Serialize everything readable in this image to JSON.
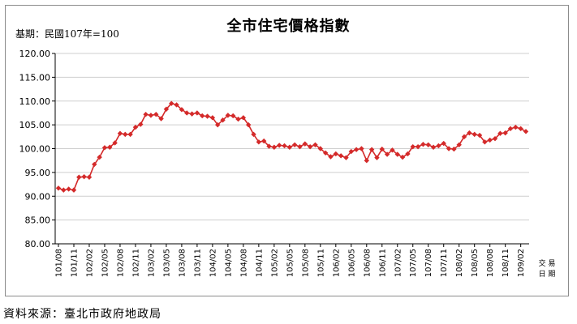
{
  "chart_title": "全市住宅價格指數",
  "base_note": "基期：民國107年=100",
  "source_note": "資料來源：臺北市政府地政局",
  "colors": {
    "line": "#d42a2a",
    "marker": "#d42a2a",
    "grid": "#cfcfcf"
  },
  "chart_data": {
    "type": "line",
    "title": "全市住宅價格指數",
    "xlabel": "交易日期",
    "ylabel": "",
    "ylim": [
      80,
      120
    ],
    "yticks": [
      "80.00",
      "85.00",
      "90.00",
      "95.00",
      "100.00",
      "105.00",
      "110.00",
      "115.00",
      "120.00"
    ],
    "grid": true,
    "legend": "none",
    "x_tick_labels": [
      "101/08",
      "101/11",
      "102/02",
      "102/05",
      "102/08",
      "102/11",
      "103/02",
      "103/05",
      "103/08",
      "103/11",
      "104/02",
      "104/05",
      "104/08",
      "104/11",
      "105/02",
      "105/05",
      "105/08",
      "105/11",
      "106/02",
      "106/05",
      "106/08",
      "106/11",
      "107/02",
      "107/05",
      "107/08",
      "107/11",
      "108/02",
      "108/05",
      "108/08",
      "108/11",
      "109/02"
    ],
    "x": [
      "101/08",
      "101/09",
      "101/10",
      "101/11",
      "101/12",
      "102/01",
      "102/02",
      "102/03",
      "102/04",
      "102/05",
      "102/06",
      "102/07",
      "102/08",
      "102/09",
      "102/10",
      "102/11",
      "102/12",
      "103/01",
      "103/02",
      "103/03",
      "103/04",
      "103/05",
      "103/06",
      "103/07",
      "103/08",
      "103/09",
      "103/10",
      "103/11",
      "103/12",
      "104/01",
      "104/02",
      "104/03",
      "104/04",
      "104/05",
      "104/06",
      "104/07",
      "104/08",
      "104/09",
      "104/10",
      "104/11",
      "104/12",
      "105/01",
      "105/02",
      "105/03",
      "105/04",
      "105/05",
      "105/06",
      "105/07",
      "105/08",
      "105/09",
      "105/10",
      "105/11",
      "105/12",
      "106/01",
      "106/02",
      "106/03",
      "106/04",
      "106/05",
      "106/06",
      "106/07",
      "106/08",
      "106/09",
      "106/10",
      "106/11",
      "106/12",
      "107/01",
      "107/02",
      "107/03",
      "107/04",
      "107/05",
      "107/06",
      "107/07",
      "107/08",
      "107/09",
      "107/10",
      "107/11",
      "107/12",
      "108/01",
      "108/02",
      "108/03",
      "108/04",
      "108/05",
      "108/06",
      "108/07",
      "108/08",
      "108/09",
      "108/10",
      "108/11",
      "108/12",
      "109/01",
      "109/02",
      "109/03"
    ],
    "series": [
      {
        "values": [
          91.7,
          91.3,
          91.5,
          91.3,
          94.0,
          94.1,
          94.0,
          96.7,
          98.2,
          100.2,
          100.3,
          101.2,
          103.2,
          103.0,
          103.0,
          104.5,
          105.1,
          107.2,
          107.0,
          107.2,
          106.3,
          108.3,
          109.5,
          109.2,
          108.2,
          107.5,
          107.3,
          107.5,
          106.9,
          106.8,
          106.5,
          105.0,
          106.0,
          107.0,
          106.9,
          106.2,
          106.5,
          105.0,
          103.0,
          101.4,
          101.6,
          100.5,
          100.3,
          100.7,
          100.6,
          100.3,
          100.8,
          100.4,
          101.0,
          100.4,
          100.8,
          100.0,
          99.1,
          98.3,
          98.9,
          98.5,
          98.1,
          99.4,
          99.8,
          100.0,
          97.5,
          99.8,
          98.1,
          99.9,
          98.8,
          99.7,
          98.8,
          98.2,
          98.9,
          100.4,
          100.4,
          100.9,
          100.8,
          100.3,
          100.6,
          101.1,
          100.0,
          99.9,
          100.8,
          102.5,
          103.3,
          103.0,
          102.8,
          101.4,
          101.8,
          102.1,
          103.2,
          103.3,
          104.2,
          104.5,
          104.2,
          103.6
        ]
      }
    ]
  }
}
